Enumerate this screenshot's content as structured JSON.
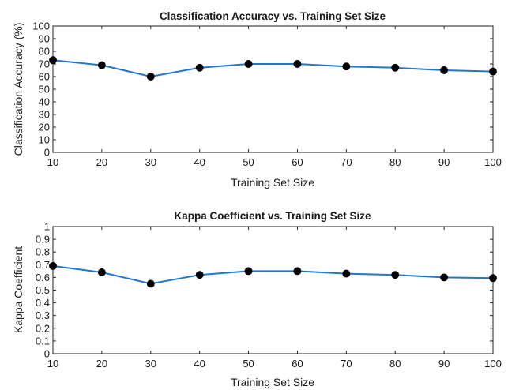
{
  "chart_data": [
    {
      "type": "line",
      "title": "Classification Accuracy vs. Training Set Size",
      "xlabel": "Training Set Size",
      "ylabel": "Classification Accuracy (%)",
      "x": [
        10,
        20,
        30,
        40,
        50,
        60,
        70,
        80,
        90,
        100
      ],
      "xticks": [
        "10",
        "20",
        "30",
        "40",
        "50",
        "60",
        "70",
        "80",
        "90",
        "100"
      ],
      "yticks": [
        "0",
        "10",
        "20",
        "30",
        "40",
        "50",
        "60",
        "70",
        "80",
        "90",
        "100"
      ],
      "xlim": [
        10,
        100
      ],
      "ylim": [
        0,
        100
      ],
      "grid": false,
      "series": [
        {
          "values": [
            73,
            69,
            60,
            67,
            70,
            70,
            68,
            67,
            65,
            64
          ],
          "color": "#1f77d4",
          "marker_color": "#000000"
        }
      ]
    },
    {
      "type": "line",
      "title": "Kappa Coefficient vs. Training Set Size",
      "xlabel": "Training Set Size",
      "ylabel": "Kappa Coefficient",
      "x": [
        10,
        20,
        30,
        40,
        50,
        60,
        70,
        80,
        90,
        100
      ],
      "xticks": [
        "10",
        "20",
        "30",
        "40",
        "50",
        "60",
        "70",
        "80",
        "90",
        "100"
      ],
      "yticks": [
        "0",
        "0.1",
        "0.2",
        "0.3",
        "0.4",
        "0.5",
        "0.6",
        "0.7",
        "0.8",
        "0.9",
        "1"
      ],
      "xlim": [
        10,
        100
      ],
      "ylim": [
        0,
        1
      ],
      "grid": false,
      "series": [
        {
          "values": [
            0.69,
            0.64,
            0.55,
            0.62,
            0.65,
            0.65,
            0.63,
            0.62,
            0.6,
            0.595
          ],
          "color": "#1f77d4",
          "marker_color": "#000000"
        }
      ]
    }
  ]
}
